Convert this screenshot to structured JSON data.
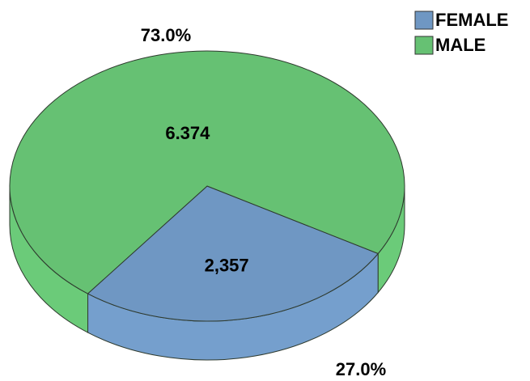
{
  "chart_data": {
    "type": "pie",
    "categories": [
      "FEMALE",
      "MALE"
    ],
    "values": [
      2357,
      6374
    ],
    "value_labels": [
      "2,357",
      "6.374"
    ],
    "percentages": [
      27.0,
      73.0
    ],
    "percent_labels": [
      "27.0%",
      "73.0%"
    ],
    "colors": [
      "#6f97c3",
      "#66c173"
    ],
    "legend": "top-right"
  }
}
